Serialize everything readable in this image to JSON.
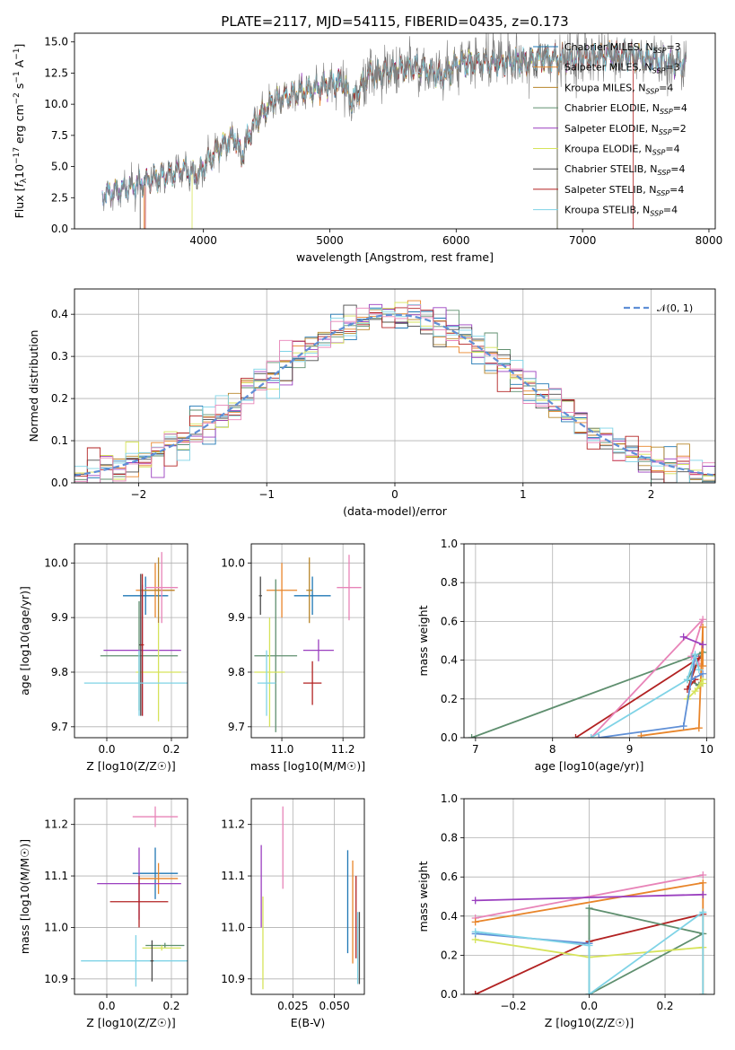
{
  "title": "PLATE=2117, MJD=54115, FIBERID=0435, z=0.173",
  "colors": {
    "chabrier_miles": "#1f77b4",
    "salpeter_miles": "#e8852a",
    "kroupa_miles": "#b8862b",
    "chabrier_elodie": "#5f8f6f",
    "salpeter_elodie": "#9a3fbf",
    "kroupa_elodie": "#d6e35a",
    "chabrier_stelib": "#4a4a4a",
    "salpeter_stelib": "#b22222",
    "kroupa_stelib": "#7fd3e6",
    "gauss": "#5f8fd6",
    "data": "#808080",
    "pink": "#e884b8"
  },
  "chart_data": [
    {
      "type": "line",
      "title": "PLATE=2117, MJD=54115, FIBERID=0435, z=0.173",
      "xlabel": "wavelength [Angstrom, rest frame]",
      "ylabel": "Flux [f_λ 10^-17 erg cm^-2 s^-1 A^-1]",
      "xlim": [
        2980,
        8050
      ],
      "ylim": [
        0,
        15.7
      ],
      "xticks": [
        "4000",
        "5000",
        "6000",
        "7000",
        "8000"
      ],
      "yticks": [
        "0.0",
        "2.5",
        "5.0",
        "7.5",
        "10.0",
        "12.5",
        "15.0"
      ],
      "legend": [
        "Chabrier MILES, N_SSP=3",
        "Salpeter MILES, N_SSP=3",
        "Kroupa MILES, N_SSP=4",
        "Chabrier ELODIE, N_SSP=4",
        "Salpeter ELODIE, N_SSP=2",
        "Kroupa ELODIE, N_SSP=4",
        "Chabrier STELIB, N_SSP=4",
        "Salpeter STELIB, N_SSP=4",
        "Kroupa STELIB, N_SSP=4"
      ],
      "spectrum_anchors": {
        "wavelength": [
          3200,
          3400,
          3550,
          3700,
          3850,
          3950,
          4100,
          4250,
          4300,
          4400,
          4550,
          4700,
          4861,
          5000,
          5100,
          5175,
          5300,
          5500,
          5700,
          5890,
          6000,
          6200,
          6400,
          6563,
          6700,
          6900,
          7100,
          7300,
          7500,
          7800
        ],
        "flux": [
          2.7,
          3.3,
          3.8,
          4.3,
          4.8,
          4.2,
          6.3,
          7.4,
          5.8,
          8.5,
          10.2,
          10.8,
          11.2,
          11.6,
          11.9,
          10.2,
          12.3,
          12.7,
          13.0,
          12.2,
          13.2,
          13.3,
          13.4,
          13.3,
          13.7,
          13.6,
          13.9,
          14.0,
          13.7,
          13.2
        ]
      },
      "model_start_wavelength": {
        "Salpeter MILES": 3530,
        "Kroupa ELODIE": 3910,
        "Chabrier STELIB": 3500,
        "Salpeter STELIB": 3540,
        "Kroupa STELIB": 3200,
        "Chabrier ELODIE": 3200,
        "Salpeter ELODIE": 3200,
        "Kroupa MILES": 3200,
        "Chabrier MILES": 3200
      },
      "model_end_wavelength": {
        "Kroupa ELODIE": 6800,
        "Chabrier STELIB": 6800,
        "Salpeter STELIB": 7400,
        "Kroupa STELIB": 7820
      }
    },
    {
      "type": "line",
      "xlabel": "(data-model)/error",
      "ylabel": "Normed distribution",
      "xlim": [
        -2.5,
        2.5
      ],
      "ylim": [
        0,
        0.46
      ],
      "xticks": [
        "−2",
        "−1",
        "0",
        "1",
        "2"
      ],
      "yticks": [
        "0.0",
        "0.1",
        "0.2",
        "0.3",
        "0.4"
      ],
      "legend": [
        "𝒩(0, 1)"
      ],
      "bin_width": 0.1,
      "bins_start": -2.5
    },
    {
      "type": "scatter",
      "xlabel": "Z [log10(Z/Z☉)]",
      "ylabel": "age  [log10(age/yr)]",
      "xlim": [
        -0.1,
        0.25
      ],
      "ylim": [
        9.68,
        10.035
      ],
      "xticks": [
        "0.0",
        "0.2"
      ],
      "yticks": [
        "9.7",
        "9.8",
        "9.9",
        "10.0"
      ],
      "points": [
        {
          "series": "Chabrier MILES",
          "x": 0.12,
          "y": 9.94,
          "xerr": 0.07,
          "yerr": 0.035
        },
        {
          "series": "Salpeter MILES",
          "x": 0.15,
          "y": 9.95,
          "xerr": 0.06,
          "yerr": 0.05
        },
        {
          "series": "Kroupa MILES",
          "x": 0.16,
          "y": 9.95,
          "xerr": 0.05,
          "yerr": 0.06
        },
        {
          "series": "Chabrier ELODIE",
          "x": 0.1,
          "y": 9.83,
          "xerr": 0.12,
          "yerr": 0.1
        },
        {
          "series": "Salpeter ELODIE",
          "x": 0.11,
          "y": 9.84,
          "xerr": 0.12,
          "yerr": 0.12
        },
        {
          "series": "Kroupa ELODIE",
          "x": 0.16,
          "y": 9.8,
          "xerr": 0.07,
          "yerr": 0.09
        },
        {
          "series": "Chabrier STELIB",
          "x": 0.105,
          "y": 9.85,
          "xerr": 0.005,
          "yerr": 0.13
        },
        {
          "series": "Salpeter STELIB",
          "x": 0.11,
          "y": 9.85,
          "xerr": 0.005,
          "yerr": 0.13
        },
        {
          "series": "Kroupa STELIB",
          "x": 0.1,
          "y": 9.78,
          "xerr": 0.17,
          "yerr": 0.06
        },
        {
          "series": "Pink",
          "x": 0.17,
          "y": 9.955,
          "xerr": 0.05,
          "yerr": 0.065
        }
      ]
    },
    {
      "type": "scatter",
      "xlabel": "mass [log10(M/M☉)]",
      "ylabel": "",
      "xlim": [
        10.9,
        11.27
      ],
      "ylim": [
        9.68,
        10.035
      ],
      "xticks": [
        "11.0",
        "11.2"
      ],
      "yticks": [
        "9.7",
        "9.8",
        "9.9",
        "10.0"
      ],
      "points": [
        {
          "series": "Chabrier MILES",
          "x": 11.1,
          "y": 9.94,
          "xerr": 0.06,
          "yerr": 0.035
        },
        {
          "series": "Salpeter MILES",
          "x": 11.0,
          "y": 9.95,
          "xerr": 0.05,
          "yerr": 0.05
        },
        {
          "series": "Kroupa MILES",
          "x": 11.09,
          "y": 9.95,
          "xerr": 0.01,
          "yerr": 0.06
        },
        {
          "series": "Chabrier ELODIE",
          "x": 10.98,
          "y": 9.83,
          "xerr": 0.07,
          "yerr": 0.14
        },
        {
          "series": "Salpeter ELODIE",
          "x": 11.12,
          "y": 9.84,
          "xerr": 0.05,
          "yerr": 0.02
        },
        {
          "series": "Kroupa ELODIE",
          "x": 10.96,
          "y": 9.8,
          "xerr": 0.05,
          "yerr": 0.1
        },
        {
          "series": "Chabrier STELIB",
          "x": 10.93,
          "y": 9.94,
          "xerr": 0.005,
          "yerr": 0.035
        },
        {
          "series": "Salpeter STELIB",
          "x": 11.1,
          "y": 9.78,
          "xerr": 0.03,
          "yerr": 0.04
        },
        {
          "series": "Kroupa STELIB",
          "x": 10.95,
          "y": 9.78,
          "xerr": 0.03,
          "yerr": 0.06
        },
        {
          "series": "Pink",
          "x": 11.22,
          "y": 9.955,
          "xerr": 0.04,
          "yerr": 0.06
        }
      ]
    },
    {
      "type": "line",
      "xlabel": "age  [log10(age/yr)]",
      "ylabel": "mass weight",
      "xlim": [
        6.85,
        10.1
      ],
      "ylim": [
        0,
        1.0
      ],
      "xticks": [
        "7",
        "8",
        "9",
        "10"
      ],
      "yticks": [
        "0.0",
        "0.2",
        "0.4",
        "0.6",
        "0.8",
        "1.0"
      ]
    },
    {
      "type": "scatter",
      "xlabel": "Z [log10(Z/Z☉)]",
      "ylabel": "mass [log10(M/M☉)]",
      "xlim": [
        -0.1,
        0.25
      ],
      "ylim": [
        10.87,
        11.25
      ],
      "xticks": [
        "0.0",
        "0.2"
      ],
      "yticks": [
        "10.9",
        "11.0",
        "11.1",
        "11.2"
      ]
    },
    {
      "type": "scatter",
      "xlabel": "E(B-V)",
      "ylabel": "",
      "xlim": [
        0.0,
        0.068
      ],
      "ylim": [
        10.87,
        11.25
      ],
      "xticks": [
        "0.025",
        "0.050"
      ],
      "yticks": [
        "10.9",
        "11.0",
        "11.1",
        "11.2"
      ]
    },
    {
      "type": "line",
      "xlabel": "Z [log10(Z/Z☉)]",
      "ylabel": "mass weight",
      "xlim": [
        -0.33,
        0.33
      ],
      "ylim": [
        0,
        1.0
      ],
      "xticks": [
        "−0.2",
        "0.0",
        "0.2"
      ],
      "yticks": [
        "0.0",
        "0.2",
        "0.4",
        "0.6",
        "0.8",
        "1.0"
      ]
    }
  ]
}
